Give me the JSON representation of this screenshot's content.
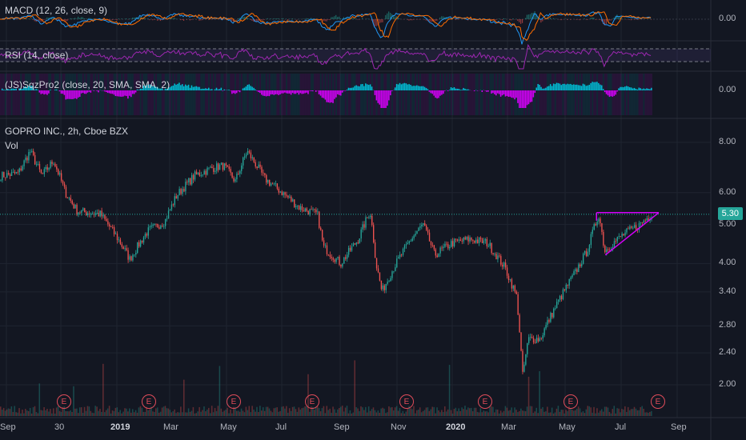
{
  "panes": {
    "macd": {
      "label": "MACD (12, 26, close, 9)",
      "axis_value": "0.00"
    },
    "rsi": {
      "label": "RSI (14, close)"
    },
    "sqz": {
      "label": "(JS)SqzPro2 (close, 20, SMA, SMA, 2)",
      "axis_value": "0.00"
    },
    "main": {
      "title": "GOPRO INC., 2h, Cboe BZX",
      "vol_label": "Vol"
    }
  },
  "price_axis": [
    "8.00",
    "6.00",
    "5.00",
    "4.00",
    "3.40",
    "2.80",
    "2.40",
    "2.00"
  ],
  "current_price": "5.30",
  "time_axis": [
    {
      "text": "Sep",
      "bold": false
    },
    {
      "text": "30",
      "bold": false
    },
    {
      "text": "2019",
      "bold": true
    },
    {
      "text": "Mar",
      "bold": false
    },
    {
      "text": "May",
      "bold": false
    },
    {
      "text": "Jul",
      "bold": false
    },
    {
      "text": "Sep",
      "bold": false
    },
    {
      "text": "Nov",
      "bold": false
    },
    {
      "text": "2020",
      "bold": true
    },
    {
      "text": "Mar",
      "bold": false
    },
    {
      "text": "May",
      "bold": false
    },
    {
      "text": "Jul",
      "bold": false
    },
    {
      "text": "Sep",
      "bold": false
    }
  ],
  "earnings_markers": [
    "E",
    "E",
    "E",
    "E",
    "E",
    "E",
    "E",
    "E"
  ],
  "colors": {
    "background": "#131722",
    "up": "#26a69a",
    "down": "#ef5350",
    "macd": "#2196f3",
    "signal": "#ff6d00",
    "rsi": "#9c27b0",
    "squeeze_pos": "#00bcd4",
    "squeeze_neg": "#d500f9",
    "pattern": "#d500f9",
    "price_line": "#26a69a"
  },
  "chart_data": {
    "type": "candlestick",
    "title": "GOPRO INC., 2h, Cboe BZX",
    "last_price": 5.3,
    "y_scale": "log",
    "ylim": [
      1.85,
      8.6
    ],
    "price_path": [
      [
        0,
        6.6
      ],
      [
        3,
        6.7
      ],
      [
        5,
        7.6
      ],
      [
        7,
        6.6
      ],
      [
        9,
        7.2
      ],
      [
        11,
        6.0
      ],
      [
        13,
        5.4
      ],
      [
        17,
        5.3
      ],
      [
        20,
        4.6
      ],
      [
        22,
        4.1
      ],
      [
        25,
        4.8
      ],
      [
        28,
        5.1
      ],
      [
        30,
        5.9
      ],
      [
        33,
        6.6
      ],
      [
        36,
        6.9
      ],
      [
        38,
        7.0
      ],
      [
        40,
        6.4
      ],
      [
        42,
        7.6
      ],
      [
        45,
        6.5
      ],
      [
        48,
        6.0
      ],
      [
        51,
        5.5
      ],
      [
        54,
        5.3
      ],
      [
        55,
        4.4
      ],
      [
        58,
        4.0
      ],
      [
        61,
        4.6
      ],
      [
        63,
        5.4
      ],
      [
        64,
        4.0
      ],
      [
        65,
        3.4
      ],
      [
        67,
        3.9
      ],
      [
        70,
        4.6
      ],
      [
        72,
        5.0
      ],
      [
        74,
        4.2
      ],
      [
        77,
        4.5
      ],
      [
        80,
        4.6
      ],
      [
        83,
        4.5
      ],
      [
        86,
        3.9
      ],
      [
        88,
        3.3
      ],
      [
        89,
        2.1
      ],
      [
        90,
        2.6
      ],
      [
        92,
        2.6
      ],
      [
        94,
        3.0
      ],
      [
        96,
        3.4
      ],
      [
        98,
        3.8
      ],
      [
        100,
        4.3
      ],
      [
        102,
        5.3
      ],
      [
        103,
        4.3
      ],
      [
        106,
        4.7
      ],
      [
        109,
        5.0
      ],
      [
        111,
        5.3
      ]
    ],
    "triangle_pattern": {
      "resistance": 5.35,
      "support_start": 4.2,
      "label": ""
    }
  }
}
